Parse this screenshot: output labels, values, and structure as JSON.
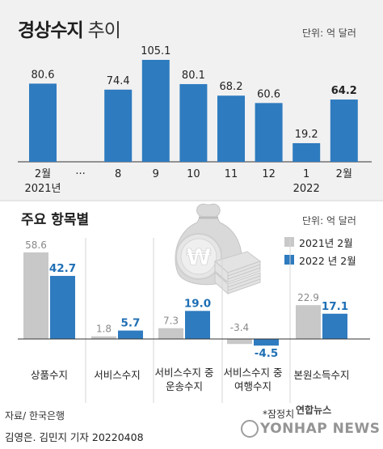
{
  "title": {
    "main": "경상수지",
    "light": "추이"
  },
  "top_unit": "단위: 억 달러",
  "bottom_title": "주요 항목별",
  "bottom_unit": "단위: 억 달러",
  "source": "자료/ 한국은행",
  "credit": "김영은. 김민지 기자  20220408",
  "note": "*잠정치",
  "brand": "연합뉴스",
  "watermark": "YONHAP NEWS",
  "colors": {
    "blue": "#2e7bbf",
    "gray": "#c8c8c8",
    "dark_text": "#222222",
    "blue_text": "#1f6fb5"
  },
  "icons": [
    "money-bag-icon",
    "won-coin-icon",
    "cash-stack-icon"
  ],
  "chart_data": [
    {
      "type": "bar",
      "categories": [
        "2월",
        "···",
        "8",
        "9",
        "10",
        "11",
        "12",
        "1",
        "2월"
      ],
      "year_labels": [
        "2021년",
        "2022"
      ],
      "values": [
        80.6,
        null,
        74.4,
        105.1,
        80.1,
        68.2,
        60.6,
        19.2,
        64.2
      ],
      "value_labels": [
        "80.6",
        "",
        "74.4",
        "105.1",
        "80.1",
        "68.2",
        "60.6",
        "19.2",
        "64.2"
      ],
      "highlight_last": true,
      "title": "경상수지 추이",
      "ylim": [
        0,
        110
      ]
    },
    {
      "type": "bar",
      "categories": [
        "상품수지",
        "서비스수지",
        "서비스수지 중|운송수지",
        "서비스수지 중|여행수지",
        "본원소득수지"
      ],
      "series": [
        {
          "name": "2021년 2월",
          "values": [
            58.6,
            1.8,
            7.3,
            -3.4,
            22.9
          ],
          "labels": [
            "58.6",
            "1.8",
            "7.3",
            "-3.4",
            "22.9"
          ]
        },
        {
          "name": "2022 년 2월",
          "values": [
            42.7,
            5.7,
            19.0,
            -4.5,
            17.1
          ],
          "labels": [
            "42.7",
            "5.7",
            "19.0",
            "-4.5",
            "17.1"
          ]
        }
      ],
      "title": "주요 항목별",
      "ylim": [
        -5,
        60
      ]
    }
  ]
}
